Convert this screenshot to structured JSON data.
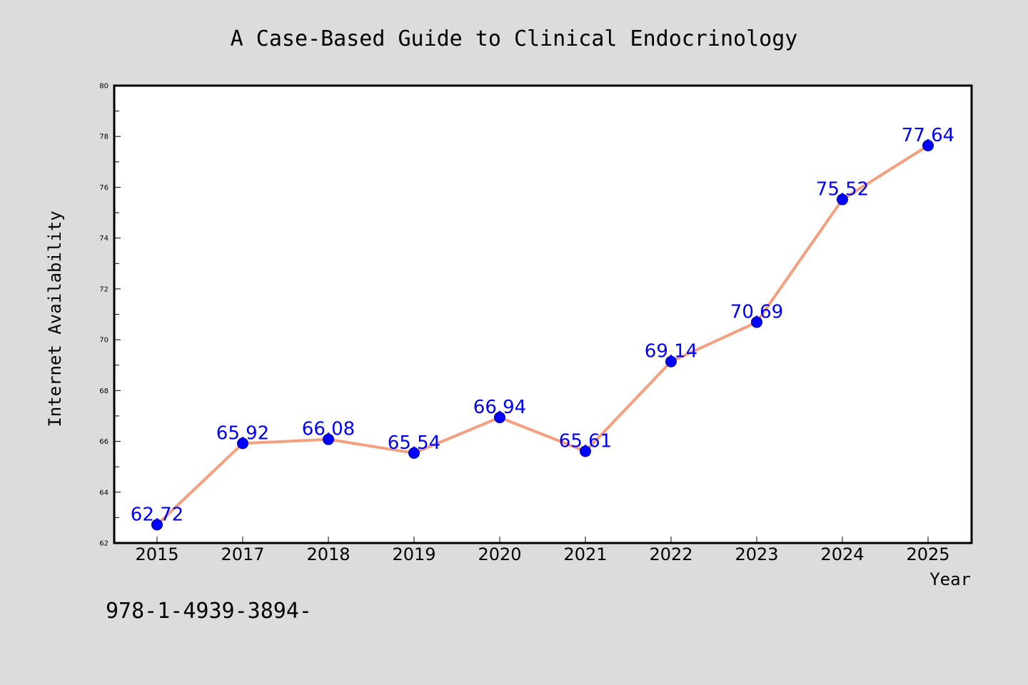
{
  "chart_data": {
    "type": "line",
    "title": "A Case-Based Guide to Clinical Endocrinology",
    "xlabel": "Year",
    "ylabel": "Internet Availability",
    "categories": [
      "2015",
      "2017",
      "2018",
      "2019",
      "2020",
      "2021",
      "2022",
      "2023",
      "2024",
      "2025"
    ],
    "series": [
      {
        "values": [
          62.72,
          65.92,
          66.08,
          65.54,
          66.94,
          65.61,
          69.14,
          70.69,
          75.52,
          77.64
        ]
      }
    ],
    "data_labels": [
      "62.72",
      "65.92",
      "66.08",
      "65.54",
      "66.94",
      "65.61",
      "69.14",
      "70.69",
      "75.52",
      "77.64"
    ],
    "ylim": [
      62,
      80
    ],
    "y_ticks": [
      "62",
      "64",
      "66",
      "68",
      "70",
      "72",
      "74",
      "76",
      "78",
      "80"
    ],
    "line_color": "#f4a07f",
    "marker_color": "#0000ff",
    "label_color": "#0000ff",
    "background_color": "#dcdcdc",
    "plot_background_color": "#ffffff",
    "grid": false,
    "legend": "none"
  },
  "footer": {
    "isbn": "978-1-4939-3894-"
  }
}
